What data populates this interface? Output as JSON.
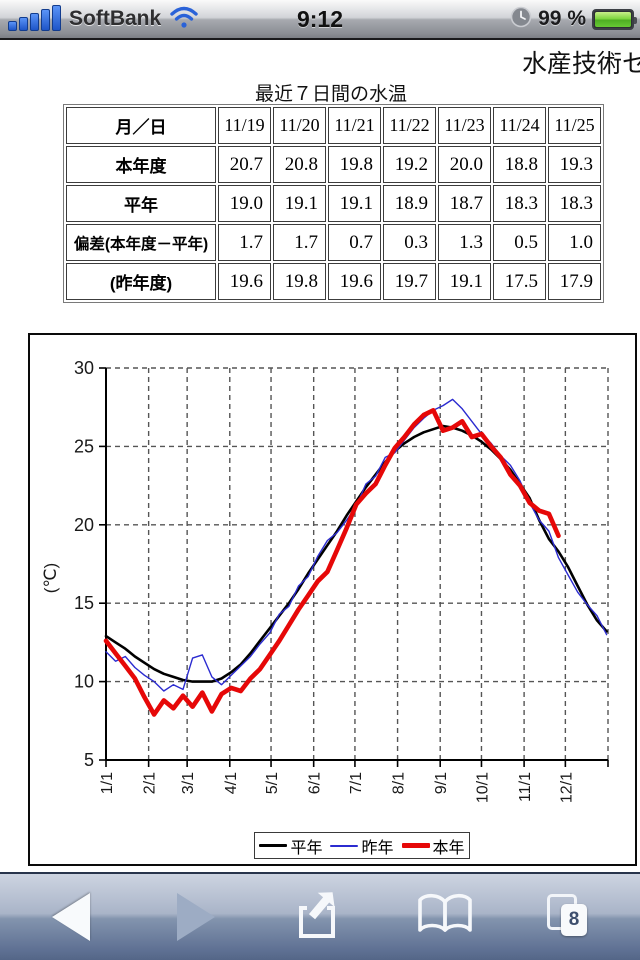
{
  "status_bar": {
    "carrier": "SoftBank",
    "time": "9:12",
    "battery_text": "99 %",
    "signal_color": "#2a62d8",
    "battery_color": "#6ccc3a"
  },
  "page": {
    "title_partial": "水産技術セ"
  },
  "water_table": {
    "title": "最近７日間の水温",
    "corner_label": "月／日",
    "dates": [
      "11/19",
      "11/20",
      "11/21",
      "11/22",
      "11/23",
      "11/24",
      "11/25"
    ],
    "rows": [
      {
        "label": "本年度",
        "values": [
          "20.7",
          "20.8",
          "19.8",
          "19.2",
          "20.0",
          "18.8",
          "19.3"
        ]
      },
      {
        "label": "平年",
        "values": [
          "19.0",
          "19.1",
          "19.1",
          "18.9",
          "18.7",
          "18.3",
          "18.3"
        ]
      },
      {
        "label": "偏差(本年度－平年)",
        "values": [
          "1.7",
          "1.7",
          "0.7",
          "0.3",
          "1.3",
          "0.5",
          "1.0"
        ]
      },
      {
        "label": "(昨年度)",
        "values": [
          "19.6",
          "19.8",
          "19.6",
          "19.7",
          "19.1",
          "17.5",
          "17.9"
        ]
      }
    ]
  },
  "chart_data": {
    "type": "line",
    "title": "",
    "xlabel": "",
    "ylabel": "(℃)",
    "ylim": [
      5,
      30
    ],
    "yticks": [
      5,
      10,
      15,
      20,
      25,
      30
    ],
    "grid": "dashed",
    "legend_position": "bottom-inside",
    "x_axis": {
      "unit": "day_of_year",
      "range": [
        0,
        365
      ],
      "tick_labels": [
        "1/1",
        "2/1",
        "3/1",
        "4/1",
        "5/1",
        "6/1",
        "7/1",
        "8/1",
        "9/1",
        "10/1",
        "11/1",
        "12/1"
      ],
      "tick_days": [
        0,
        31,
        59,
        90,
        120,
        151,
        181,
        212,
        243,
        273,
        304,
        334
      ]
    },
    "sample_interval_days": 7,
    "series": [
      {
        "name": "平年",
        "color": "#000000",
        "width": 2.6,
        "y": [
          12.9,
          12.5,
          12.1,
          11.6,
          11.2,
          10.8,
          10.5,
          10.3,
          10.1,
          10.0,
          10.0,
          10.0,
          10.2,
          10.6,
          11.1,
          11.8,
          12.6,
          13.4,
          14.2,
          15.0,
          15.9,
          16.9,
          17.8,
          18.7,
          19.6,
          20.6,
          21.5,
          22.4,
          23.2,
          24.0,
          24.7,
          25.2,
          25.6,
          25.9,
          26.1,
          26.3,
          26.2,
          26.0,
          25.7,
          25.3,
          24.8,
          24.2,
          23.5,
          22.6,
          21.7,
          20.3,
          19.1,
          18.3,
          17.3,
          16.1,
          14.9,
          13.9,
          13.2
        ]
      },
      {
        "name": "昨年",
        "color": "#2b2bd0",
        "width": 1.4,
        "y": [
          11.9,
          11.3,
          11.6,
          10.9,
          10.4,
          10.0,
          9.4,
          9.8,
          9.5,
          11.5,
          11.7,
          10.3,
          9.8,
          10.4,
          11.0,
          11.6,
          12.4,
          13.1,
          14.3,
          14.8,
          16.1,
          16.7,
          18.0,
          19.0,
          19.5,
          20.3,
          21.2,
          22.6,
          23.1,
          24.3,
          24.6,
          25.4,
          26.2,
          26.8,
          27.3,
          27.6,
          28.0,
          27.4,
          26.6,
          25.8,
          25.2,
          24.4,
          23.8,
          22.8,
          21.4,
          20.3,
          19.6,
          17.9,
          16.8,
          15.7,
          14.9,
          14.2,
          13.0
        ]
      },
      {
        "name": "本年",
        "color": "#e60808",
        "width": 4.6,
        "y": [
          12.6,
          11.8,
          11.0,
          10.2,
          9.0,
          7.9,
          8.8,
          8.3,
          9.1,
          8.4,
          9.3,
          8.1,
          9.2,
          9.6,
          9.4,
          10.2,
          10.8,
          11.7,
          12.6,
          13.6,
          14.6,
          15.5,
          16.4,
          17.0,
          18.4,
          19.8,
          21.3,
          22.0,
          22.6,
          23.8,
          24.9,
          25.6,
          26.4,
          27.0,
          27.3,
          26.0,
          26.2,
          26.6,
          25.6,
          25.8,
          25.0,
          24.3,
          23.2,
          22.5,
          21.4,
          20.9,
          20.7,
          19.3
        ]
      }
    ]
  },
  "toolbar": {
    "page_count": "8",
    "icons": [
      "back-arrow",
      "forward-arrow",
      "share",
      "bookmarks",
      "pages"
    ]
  }
}
